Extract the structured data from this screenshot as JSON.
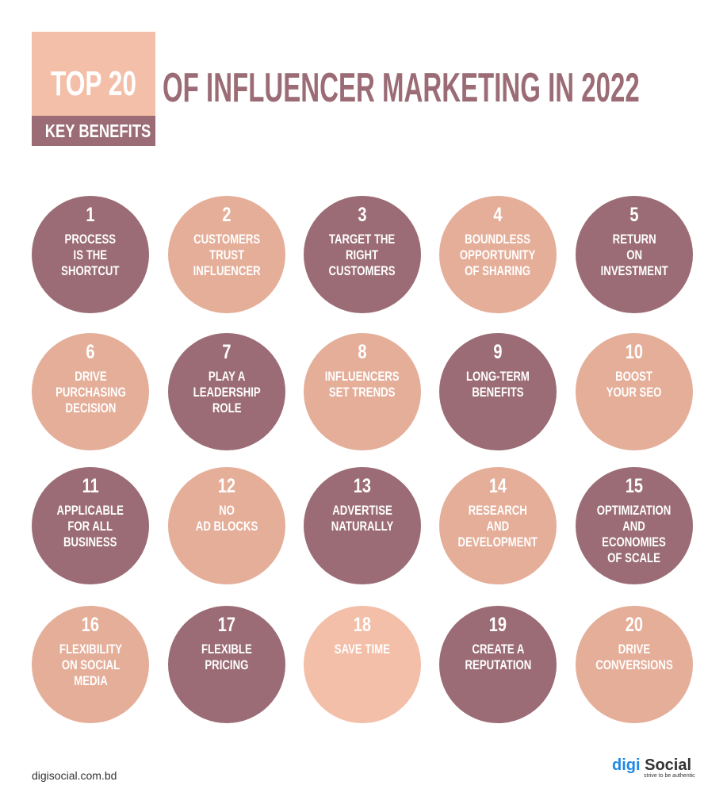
{
  "header": {
    "top": "TOP 20",
    "key": "KEY BENEFITS",
    "title": "OF INFLUENCER MARKETING IN 2022"
  },
  "colors": {
    "dark": "#9b6c75",
    "salmon": "#e5ae99",
    "light": "#f3bfa8"
  },
  "benefits": [
    {
      "num": "1",
      "label": "PROCESS\nIS THE\nSHORTCUT",
      "color": "dark"
    },
    {
      "num": "2",
      "label": "CUSTOMERS\nTRUST\nINFLUENCER",
      "color": "salmon"
    },
    {
      "num": "3",
      "label": "TARGET THE\nRIGHT\nCUSTOMERS",
      "color": "dark"
    },
    {
      "num": "4",
      "label": "BOUNDLESS\nOPPORTUNITY\nOF SHARING",
      "color": "salmon"
    },
    {
      "num": "5",
      "label": "RETURN\nON\nINVESTMENT",
      "color": "dark"
    },
    {
      "num": "6",
      "label": "DRIVE\nPURCHASING\nDECISION",
      "color": "salmon"
    },
    {
      "num": "7",
      "label": "PLAY A\nLEADERSHIP\nROLE",
      "color": "dark"
    },
    {
      "num": "8",
      "label": "INFLUENCERS\nSET TRENDS",
      "color": "salmon"
    },
    {
      "num": "9",
      "label": "LONG-TERM\nBENEFITS",
      "color": "dark"
    },
    {
      "num": "10",
      "label": "BOOST\nYOUR SEO",
      "color": "salmon"
    },
    {
      "num": "11",
      "label": "APPLICABLE\nFOR ALL\nBUSINESS",
      "color": "dark"
    },
    {
      "num": "12",
      "label": "NO\nAD BLOCKS",
      "color": "salmon"
    },
    {
      "num": "13",
      "label": "ADVERTISE\nNATURALLY",
      "color": "dark"
    },
    {
      "num": "14",
      "label": "RESEARCH\nAND\nDEVELOPMENT",
      "color": "salmon"
    },
    {
      "num": "15",
      "label": "OPTIMIZATION\nAND\nECONOMIES\nOF SCALE",
      "color": "dark"
    },
    {
      "num": "16",
      "label": "FLEXIBILITY\nON SOCIAL\nMEDIA",
      "color": "salmon"
    },
    {
      "num": "17",
      "label": "FLEXIBLE\nPRICING",
      "color": "dark"
    },
    {
      "num": "18",
      "label": "SAVE TIME",
      "color": "light"
    },
    {
      "num": "19",
      "label": "CREATE A\nREPUTATION",
      "color": "dark"
    },
    {
      "num": "20",
      "label": "DRIVE\nCONVERSIONS",
      "color": "salmon"
    }
  ],
  "footer": {
    "url": "digisocial.com.bd",
    "logo_digi": "digi",
    "logo_social": " Social",
    "logo_tagline": "strive to be authentic"
  }
}
